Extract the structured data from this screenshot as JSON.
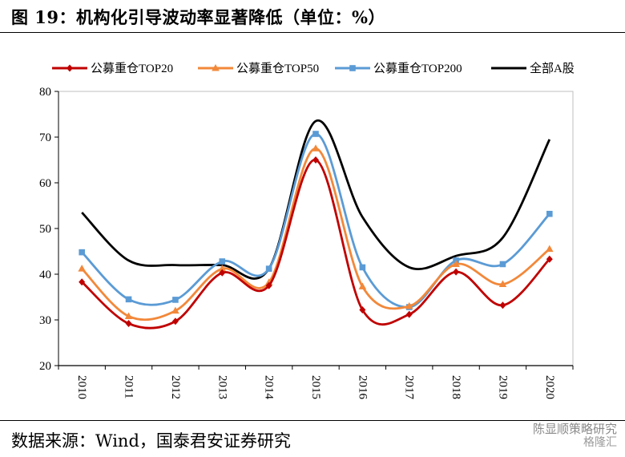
{
  "figure": {
    "title": "图 19：机构化引导波动率显著降低（单位：%）",
    "source": "数据来源：Wind，国泰君安证券研究",
    "watermark": "陈显顺策略研究",
    "watermark2": "格隆汇"
  },
  "chart_data": {
    "type": "line",
    "title": "",
    "xlabel": "",
    "ylabel": "",
    "ylim": [
      20,
      80
    ],
    "yticks": [
      20,
      30,
      40,
      50,
      60,
      70,
      80
    ],
    "categories": [
      "2010",
      "2011",
      "2012",
      "2013",
      "2014",
      "2015",
      "2016",
      "2017",
      "2018",
      "2019",
      "2020"
    ],
    "grid": false,
    "legend_position": "top",
    "series": [
      {
        "name": "公募重仓TOP20",
        "color": "#C00000",
        "marker": "diamond",
        "values": [
          38.3,
          29.2,
          29.7,
          40.3,
          37.5,
          65.0,
          32.2,
          31.2,
          40.5,
          33.2,
          43.3
        ]
      },
      {
        "name": "公募重仓TOP50",
        "color": "#F2883A",
        "marker": "triangle",
        "values": [
          41.2,
          30.8,
          32.0,
          41.2,
          38.2,
          67.5,
          37.3,
          33.0,
          42.2,
          37.8,
          45.5
        ]
      },
      {
        "name": "公募重仓TOP200",
        "color": "#5B9BD5",
        "marker": "square",
        "values": [
          44.8,
          34.5,
          34.4,
          42.8,
          41.2,
          70.7,
          41.5,
          32.8,
          43.0,
          42.2,
          53.2
        ]
      },
      {
        "name": "全部A股",
        "color": "#000000",
        "marker": "none",
        "values": [
          53.5,
          43.0,
          42.0,
          42.0,
          41.2,
          73.5,
          52.5,
          41.5,
          44.0,
          48.0,
          69.5
        ]
      }
    ]
  }
}
